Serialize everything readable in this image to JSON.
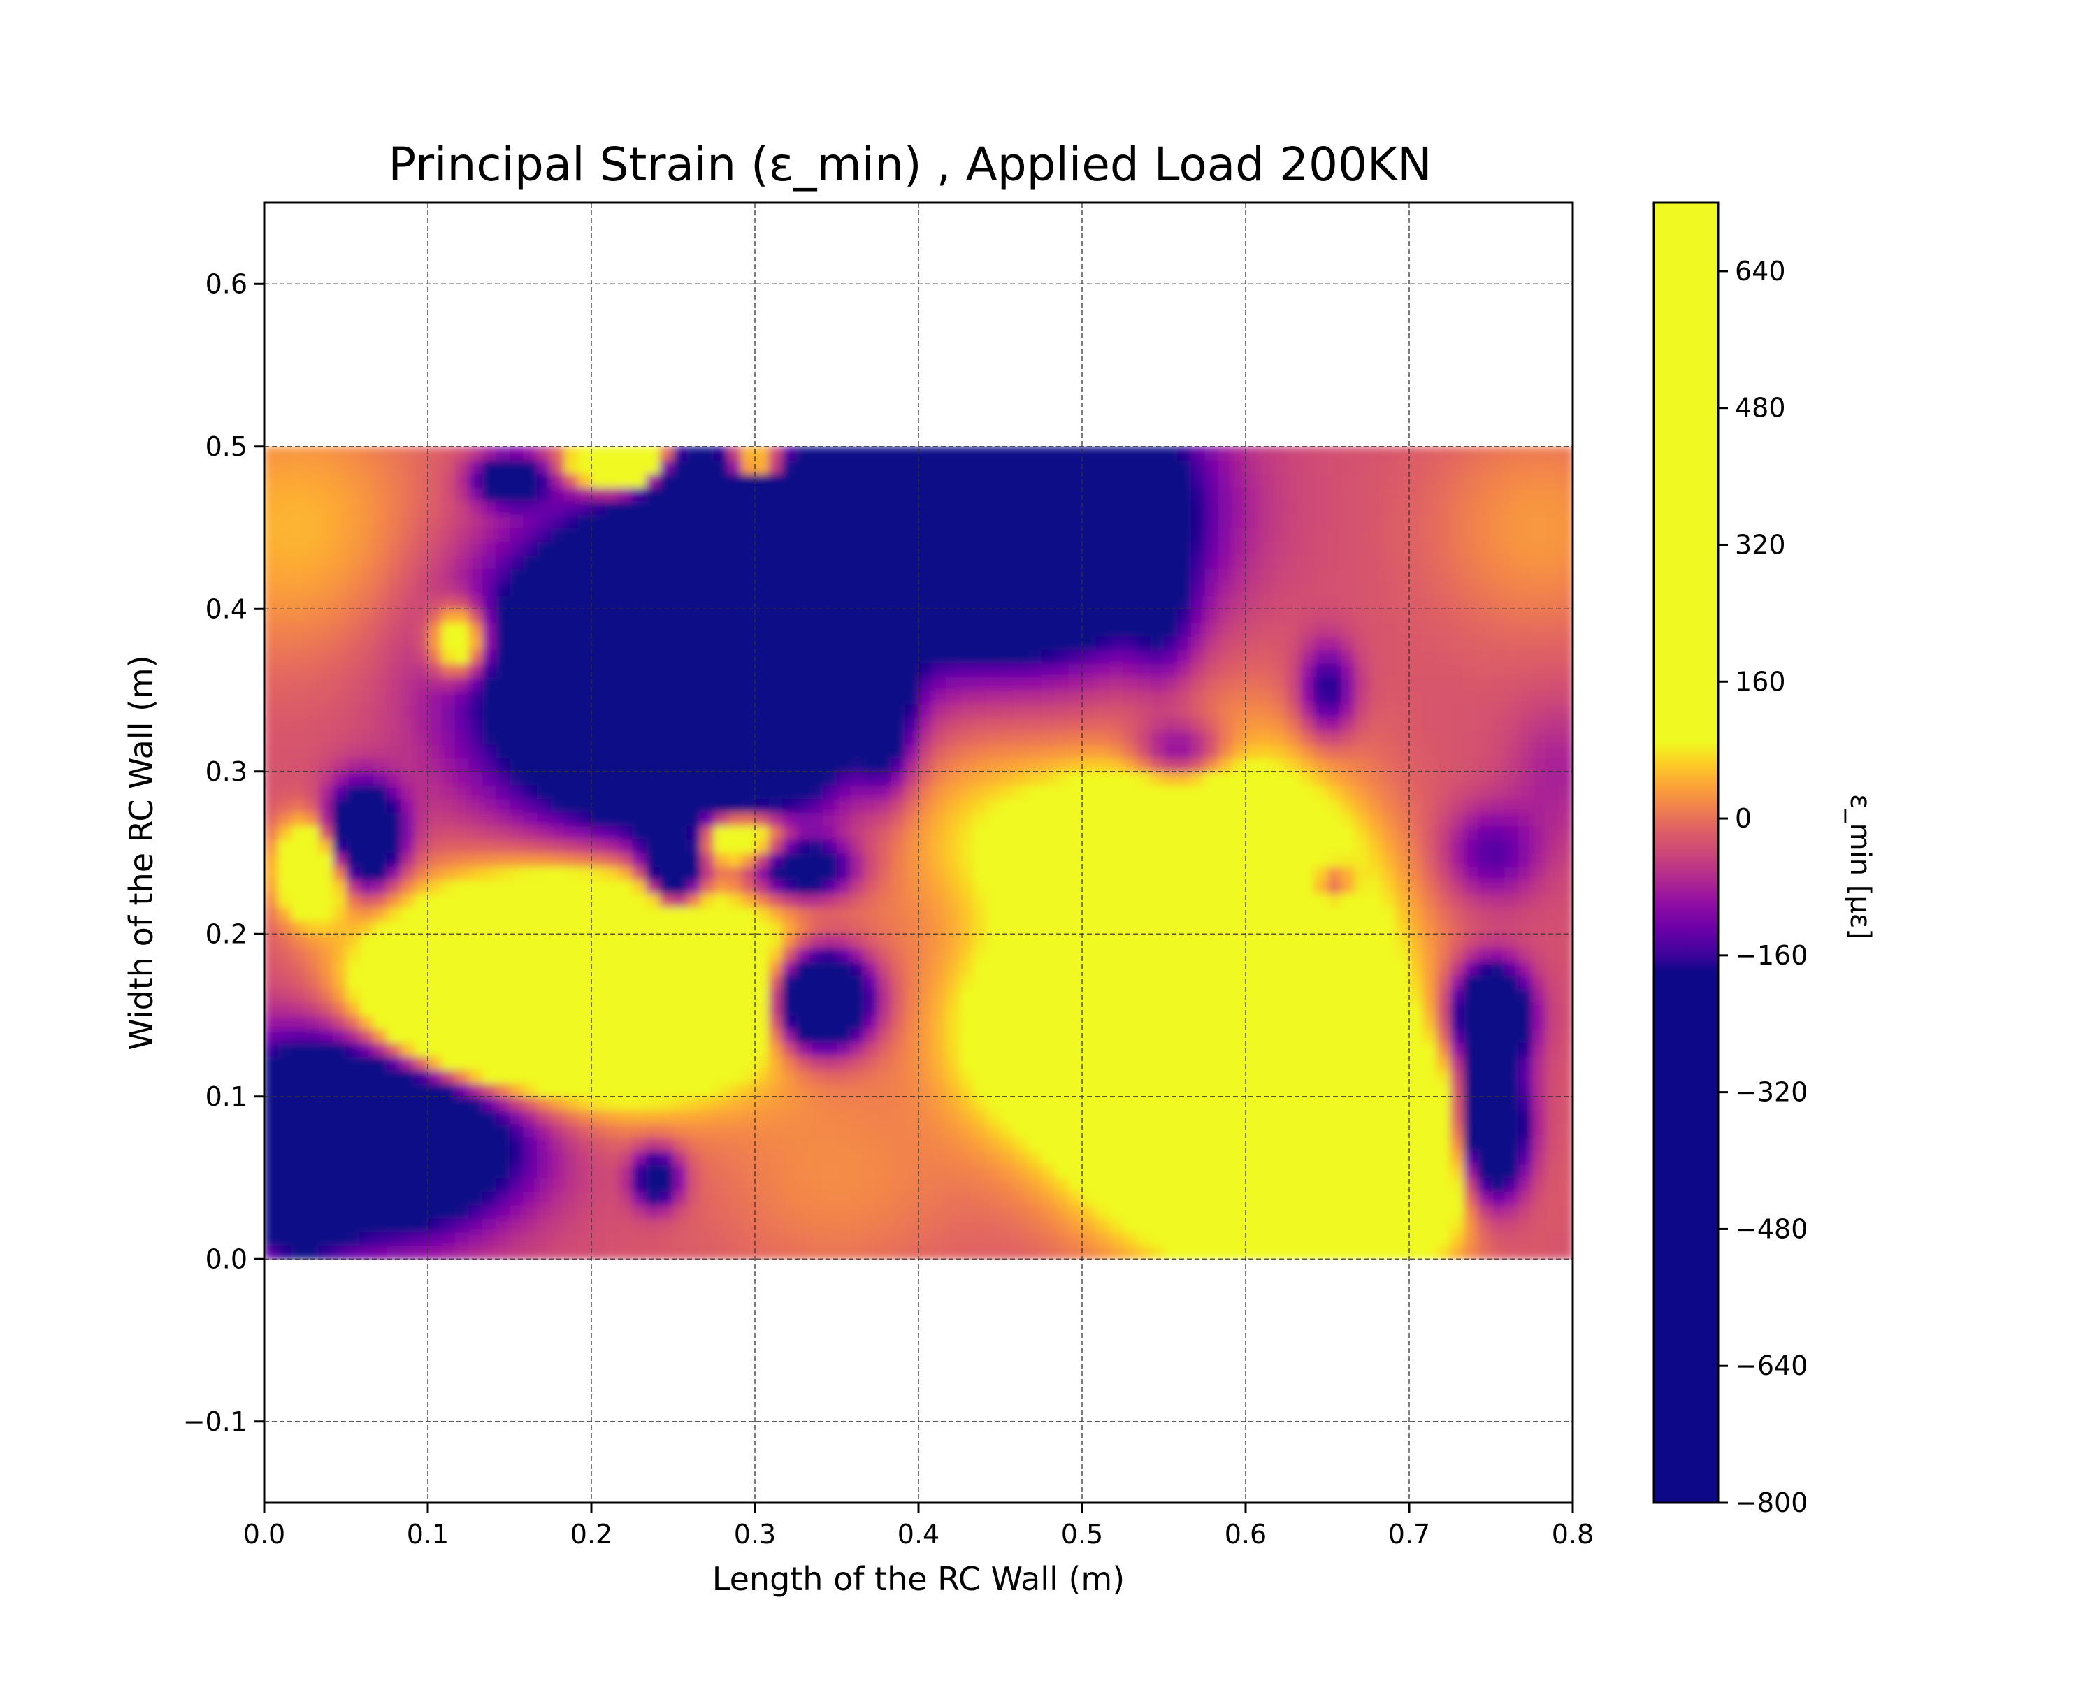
{
  "chart_data": {
    "type": "heatmap",
    "title": "Principal Strain (ε_min) , Applied Load 200KN",
    "xlabel": "Length of the RC Wall (m)",
    "ylabel": "Width of the RC Wall (m)",
    "colorbar_label": "ε_min [με]",
    "xlim": [
      0.0,
      0.8
    ],
    "ylim": [
      -0.15,
      0.65
    ],
    "data_extent": {
      "x": [
        0.0,
        0.8
      ],
      "y": [
        0.0,
        0.5
      ]
    },
    "grid": true,
    "colormap": "plasma",
    "color_range": [
      -800,
      720
    ],
    "colormap_stops": [
      {
        "value": -800,
        "color": "#0d0887"
      },
      {
        "value": -180,
        "color": "#0d0887"
      },
      {
        "value": -160,
        "color": "#3d049b"
      },
      {
        "value": -130,
        "color": "#6a00a8"
      },
      {
        "value": -100,
        "color": "#900da4"
      },
      {
        "value": -70,
        "color": "#b12a90"
      },
      {
        "value": -40,
        "color": "#cc4778"
      },
      {
        "value": -10,
        "color": "#e16462"
      },
      {
        "value": 15,
        "color": "#f2844b"
      },
      {
        "value": 40,
        "color": "#fca636"
      },
      {
        "value": 65,
        "color": "#fcce25"
      },
      {
        "value": 90,
        "color": "#f0f921"
      },
      {
        "value": 720,
        "color": "#f0f921"
      }
    ],
    "x_ticks": [
      "0.0",
      "0.1",
      "0.2",
      "0.3",
      "0.4",
      "0.5",
      "0.6",
      "0.7",
      "0.8"
    ],
    "x_tick_values": [
      0.0,
      0.1,
      0.2,
      0.3,
      0.4,
      0.5,
      0.6,
      0.7,
      0.8
    ],
    "y_ticks": [
      "−0.1",
      "0.0",
      "0.1",
      "0.2",
      "0.3",
      "0.4",
      "0.5",
      "0.6"
    ],
    "y_tick_values": [
      -0.1,
      0.0,
      0.1,
      0.2,
      0.3,
      0.4,
      0.5,
      0.6
    ],
    "colorbar_ticks": [
      "640",
      "480",
      "320",
      "160",
      "0",
      "−160",
      "−320",
      "−480",
      "−640",
      "−800"
    ],
    "colorbar_tick_values": [
      640,
      480,
      320,
      160,
      0,
      -160,
      -320,
      -480,
      -640,
      -800
    ],
    "background_value": -30,
    "field_features": [
      {
        "x": 0.02,
        "y": 0.45,
        "value": 50,
        "sx": 0.06,
        "sy": 0.06
      },
      {
        "x": 0.78,
        "y": 0.45,
        "value": 30,
        "sx": 0.05,
        "sy": 0.05
      },
      {
        "x": 0.42,
        "y": 0.28,
        "value": 40,
        "sx": 0.06,
        "sy": 0.05
      },
      {
        "x": 0.12,
        "y": 0.06,
        "value": 10,
        "sx": 0.06,
        "sy": 0.04
      },
      {
        "x": 0.35,
        "y": 0.05,
        "value": 20,
        "sx": 0.06,
        "sy": 0.05
      },
      {
        "x": 0.6,
        "y": 0.3,
        "value": 10,
        "sx": 0.05,
        "sy": 0.05
      },
      {
        "x": 0.2,
        "y": 0.17,
        "value": 700,
        "sx": 0.07,
        "sy": 0.04
      },
      {
        "x": 0.12,
        "y": 0.15,
        "value": 350,
        "sx": 0.04,
        "sy": 0.03
      },
      {
        "x": 0.58,
        "y": 0.15,
        "value": 800,
        "sx": 0.06,
        "sy": 0.07
      },
      {
        "x": 0.65,
        "y": 0.06,
        "value": 700,
        "sx": 0.05,
        "sy": 0.04
      },
      {
        "x": 0.54,
        "y": 0.25,
        "value": 200,
        "sx": 0.06,
        "sy": 0.03
      },
      {
        "x": 0.47,
        "y": 0.14,
        "value": 120,
        "sx": 0.04,
        "sy": 0.04
      },
      {
        "x": 0.03,
        "y": 0.24,
        "value": 300,
        "sx": 0.015,
        "sy": 0.02
      },
      {
        "x": 0.29,
        "y": 0.26,
        "value": 300,
        "sx": 0.02,
        "sy": 0.012
      },
      {
        "x": 0.23,
        "y": 0.38,
        "value": 500,
        "sx": 0.012,
        "sy": 0.02
      },
      {
        "x": 0.12,
        "y": 0.38,
        "value": 250,
        "sx": 0.012,
        "sy": 0.015
      },
      {
        "x": 0.22,
        "y": 0.49,
        "value": 600,
        "sx": 0.02,
        "sy": 0.01
      },
      {
        "x": 0.3,
        "y": 0.49,
        "value": 400,
        "sx": 0.015,
        "sy": 0.01
      },
      {
        "x": 0.55,
        "y": 0.04,
        "value": -60,
        "sx": 0.015,
        "sy": 0.02
      },
      {
        "x": 0.25,
        "y": 0.36,
        "value": -700,
        "sx": 0.07,
        "sy": 0.06
      },
      {
        "x": 0.3,
        "y": 0.42,
        "value": -500,
        "sx": 0.04,
        "sy": 0.06
      },
      {
        "x": 0.46,
        "y": 0.46,
        "value": -800,
        "sx": 0.06,
        "sy": 0.05
      },
      {
        "x": 0.07,
        "y": 0.08,
        "value": -600,
        "sx": 0.06,
        "sy": 0.04
      },
      {
        "x": 0.06,
        "y": 0.26,
        "value": -500,
        "sx": 0.015,
        "sy": 0.02
      },
      {
        "x": 0.34,
        "y": 0.16,
        "value": -600,
        "sx": 0.02,
        "sy": 0.02
      },
      {
        "x": 0.25,
        "y": 0.24,
        "value": -400,
        "sx": 0.012,
        "sy": 0.02
      },
      {
        "x": 0.33,
        "y": 0.24,
        "value": -300,
        "sx": 0.02,
        "sy": 0.012
      },
      {
        "x": 0.75,
        "y": 0.15,
        "value": -500,
        "sx": 0.015,
        "sy": 0.02
      },
      {
        "x": 0.75,
        "y": 0.08,
        "value": -500,
        "sx": 0.015,
        "sy": 0.03
      },
      {
        "x": 0.65,
        "y": 0.23,
        "value": -250,
        "sx": 0.012,
        "sy": 0.012
      },
      {
        "x": 0.65,
        "y": 0.35,
        "value": -200,
        "sx": 0.012,
        "sy": 0.02
      },
      {
        "x": 0.75,
        "y": 0.25,
        "value": -150,
        "sx": 0.02,
        "sy": 0.02
      },
      {
        "x": 0.24,
        "y": 0.05,
        "value": -300,
        "sx": 0.01,
        "sy": 0.012
      },
      {
        "x": 0.56,
        "y": 0.31,
        "value": -200,
        "sx": 0.02,
        "sy": 0.015
      },
      {
        "x": 0.55,
        "y": 0.39,
        "value": -120,
        "sx": 0.015,
        "sy": 0.03
      },
      {
        "x": 0.15,
        "y": 0.48,
        "value": -300,
        "sx": 0.015,
        "sy": 0.01
      },
      {
        "x": 0.26,
        "y": 0.48,
        "value": -400,
        "sx": 0.015,
        "sy": 0.01
      },
      {
        "x": 0.32,
        "y": 0.35,
        "value": -150,
        "sx": 0.015,
        "sy": 0.02
      },
      {
        "x": 0.38,
        "y": 0.33,
        "value": -200,
        "sx": 0.012,
        "sy": 0.03
      },
      {
        "x": 0.02,
        "y": 0.02,
        "value": -150,
        "sx": 0.02,
        "sy": 0.02
      },
      {
        "x": 0.79,
        "y": 0.3,
        "value": -80,
        "sx": 0.02,
        "sy": 0.03
      }
    ]
  }
}
